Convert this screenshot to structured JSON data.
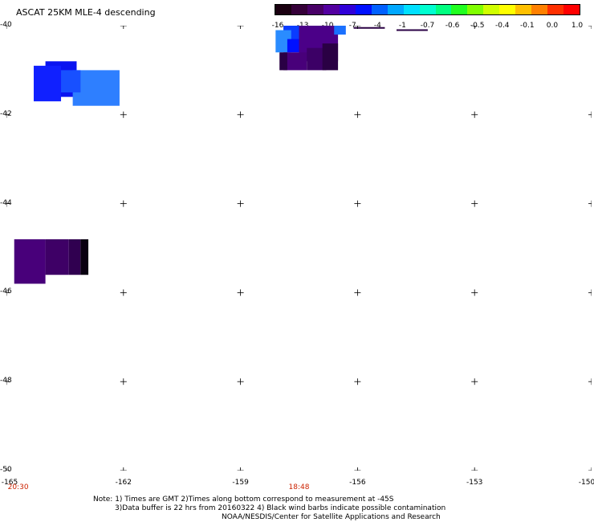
{
  "title": "ASCAT 25KM MLE-4 descending",
  "colorbar": {
    "labels": [
      "-16",
      "-13",
      "-10",
      "-7",
      "-4",
      "-1",
      "-0.7",
      "-0.6",
      "-0.5",
      "-0.4",
      "-0.1",
      "0.0",
      "1.0"
    ],
    "colors": [
      "#1a0010",
      "#350038",
      "#480066",
      "#5300a0",
      "#3000d8",
      "#0010ff",
      "#0060ff",
      "#00a8ff",
      "#00e0ff",
      "#00ffd0",
      "#00ff80",
      "#20ff20",
      "#80ff00",
      "#d0ff00",
      "#ffff00",
      "#ffc000",
      "#ff8000",
      "#ff3000",
      "#ff0000"
    ]
  },
  "axes": {
    "y_ticks": [
      "-40",
      "-42",
      "-44",
      "-46",
      "-48",
      "-50"
    ],
    "x_ticks": [
      "-165",
      "-162",
      "-159",
      "-156",
      "-153",
      "-150"
    ],
    "lat_range": [
      -50,
      -40
    ],
    "lon_range": [
      -165,
      -150
    ]
  },
  "time_labels": [
    {
      "text": "20:30",
      "lon": -164.7
    },
    {
      "text": "18:48",
      "lon": -157.5
    }
  ],
  "data_patches": [
    {
      "lon": [
        -164.0,
        -163.2
      ],
      "lat": [
        -40.8,
        -41.6
      ],
      "color": "#0a14f0"
    },
    {
      "lon": [
        -164.3,
        -163.6
      ],
      "lat": [
        -40.9,
        -41.7
      ],
      "color": "#1020ff"
    },
    {
      "lon": [
        -163.3,
        -162.1
      ],
      "lat": [
        -41.0,
        -41.8
      ],
      "color": "#2e7fff"
    },
    {
      "lon": [
        -163.6,
        -163.1
      ],
      "lat": [
        -41.0,
        -41.5
      ],
      "color": "#1850ff"
    },
    {
      "lon": [
        -157.9,
        -157.5
      ],
      "lat": [
        -40.0,
        -40.5
      ],
      "color": "#0a3cff"
    },
    {
      "lon": [
        -158.1,
        -157.7
      ],
      "lat": [
        -40.1,
        -40.6
      ],
      "color": "#2a8cff"
    },
    {
      "lon": [
        -157.8,
        -157.3
      ],
      "lat": [
        -40.3,
        -40.6
      ],
      "color": "#0010ff"
    },
    {
      "lon": [
        -157.5,
        -156.5
      ],
      "lat": [
        -40.0,
        -40.8
      ],
      "color": "#4b0088"
    },
    {
      "lon": [
        -157.9,
        -157.3
      ],
      "lat": [
        -40.6,
        -41.0
      ],
      "color": "#48007a"
    },
    {
      "lon": [
        -157.3,
        -156.8
      ],
      "lat": [
        -40.5,
        -41.0
      ],
      "color": "#3c0066"
    },
    {
      "lon": [
        -156.9,
        -156.5
      ],
      "lat": [
        -40.4,
        -41.0
      ],
      "color": "#2a0044"
    },
    {
      "lon": [
        -156.6,
        -156.3
      ],
      "lat": [
        -40.0,
        -40.2
      ],
      "color": "#1a70ff"
    },
    {
      "lon": [
        -158.0,
        -157.8
      ],
      "lat": [
        -40.6,
        -41.0
      ],
      "color": "#2a0044"
    },
    {
      "lon": [
        -164.8,
        -164.0
      ],
      "lat": [
        -44.8,
        -45.8
      ],
      "color": "#48007a"
    },
    {
      "lon": [
        -164.0,
        -163.4
      ],
      "lat": [
        -44.8,
        -45.6
      ],
      "color": "#3e0066"
    },
    {
      "lon": [
        -163.4,
        -163.1
      ],
      "lat": [
        -44.8,
        -45.6
      ],
      "color": "#300050"
    },
    {
      "lon": [
        -163.1,
        -162.9
      ],
      "lat": [
        -44.8,
        -45.6
      ],
      "color": "#0a0010"
    }
  ],
  "footnotes": [
    "Note: 1) Times are GMT 2)Times along bottom correspond to measurement at -45S",
    "3)Data buffer is 22 hrs from 20160322 4) Black wind barbs indicate possible contamination",
    "NOAA/NESDIS/Center for Satellite Applications and Research"
  ]
}
